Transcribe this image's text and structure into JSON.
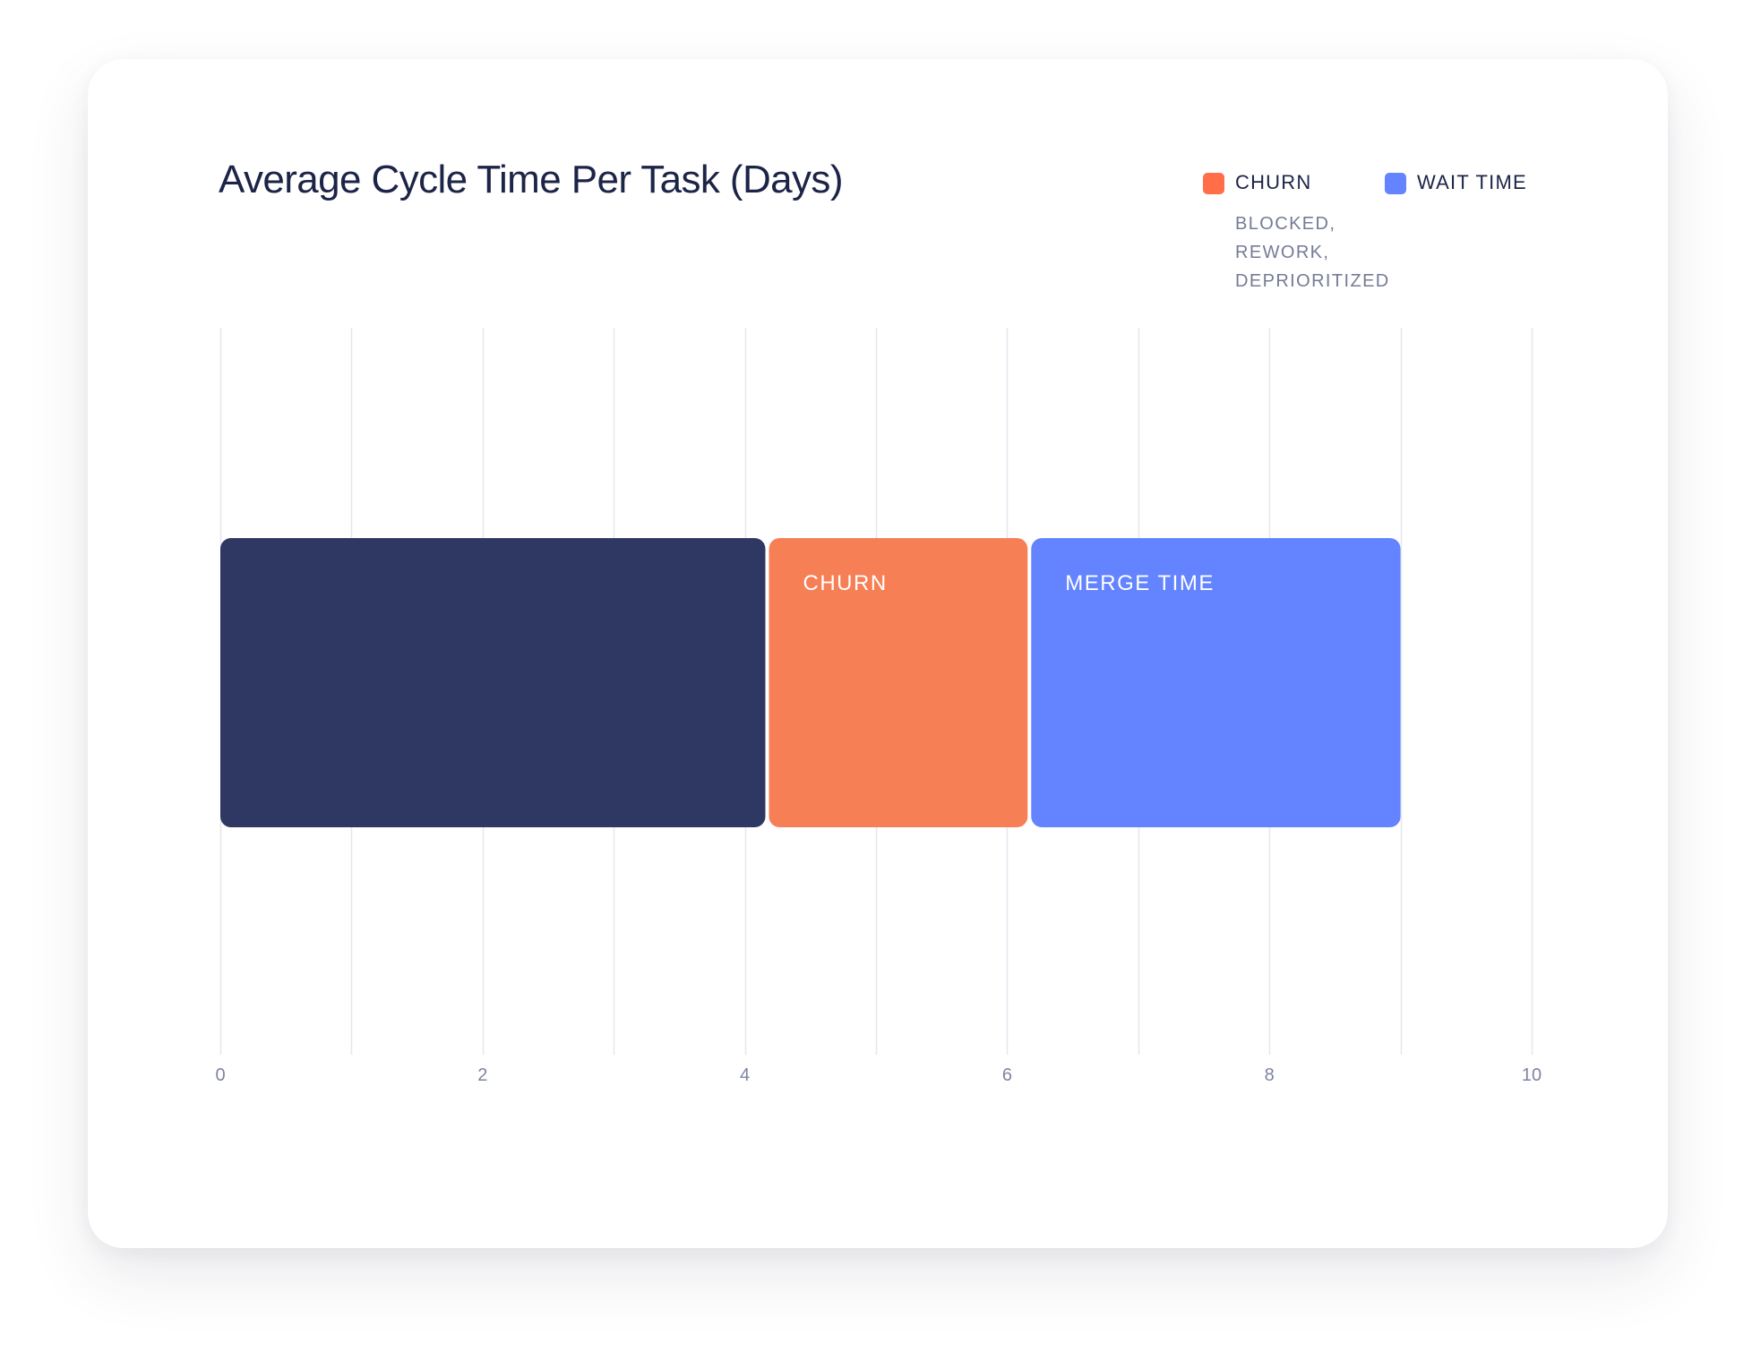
{
  "chart_data": {
    "type": "bar",
    "orientation": "horizontal",
    "stacked": true,
    "title": "Average Cycle Time Per Task (Days)",
    "xlabel": "",
    "ylabel": "",
    "xlim": [
      0,
      10
    ],
    "x_ticks": [
      0,
      2,
      4,
      6,
      8,
      10
    ],
    "grid": true,
    "legend_position": "top-right",
    "legend": [
      {
        "name": "CHURN",
        "color": "#ff6e48",
        "sub": [
          "BLOCKED,",
          "REWORK,",
          "DEPRIORITIZED"
        ]
      },
      {
        "name": "WAIT TIME",
        "color": "#6383ff"
      }
    ],
    "segments": [
      {
        "label": "",
        "start": 0,
        "end": 4.17,
        "value": 4.17,
        "color": "#2f3862"
      },
      {
        "label": "CHURN",
        "start": 4.17,
        "end": 6.17,
        "value": 2.0,
        "color": "#f77f56"
      },
      {
        "label": "MERGE TIME",
        "start": 6.17,
        "end": 9.0,
        "value": 2.83,
        "color": "#6383ff"
      }
    ]
  }
}
